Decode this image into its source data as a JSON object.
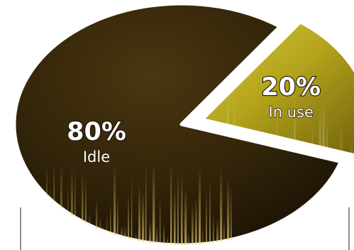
{
  "chart_data": {
    "type": "pie",
    "slices": [
      {
        "label": "Idle",
        "value": 80,
        "value_label": "80%",
        "color": "#3a2a0c"
      },
      {
        "label": "In use",
        "value": 20,
        "value_label": "20%",
        "color": "#b8a81e"
      }
    ],
    "exploded_slice": "In use",
    "legend": "none"
  }
}
